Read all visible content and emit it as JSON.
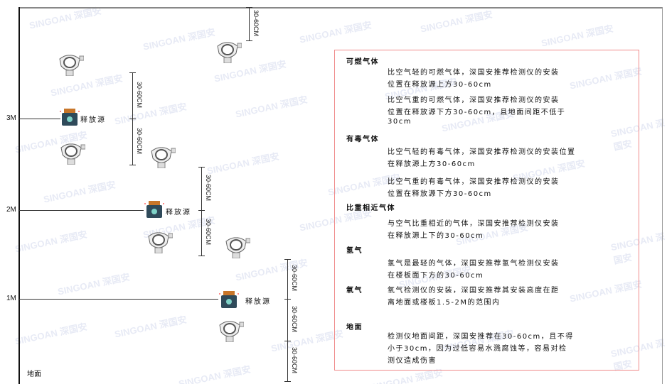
{
  "levels": [
    "3M",
    "2M",
    "1M"
  ],
  "ground_label": "地面",
  "release_source_label": "释放源",
  "dimension_label": "30-60CM",
  "watermark": "SINGOAN 深国安",
  "colors": {
    "panel_border": "#f08a8a",
    "source_body": "#2f4a5a",
    "source_cap": "#c8762a"
  },
  "panel": {
    "sections": [
      {
        "title": "可燃气体",
        "paragraphs": [
          [
            "比空气轻的可燃气体，深国安推荐检测仪的安装",
            "位置在释放源上方30-60cm"
          ],
          [
            "比空气重的可燃气体，深国安推荐检测仪的安装",
            "位置在释放源下方30-60cm，且地面间距不低于",
            "30cm"
          ]
        ]
      },
      {
        "title": "有毒气体",
        "paragraphs": [
          [
            "比空气轻的有毒气体，深国安推荐检测仪的安装位置",
            "在释放源上方30-60cm"
          ],
          [
            "比空气重的有毒气体，深国安推荐检测仪的安装",
            "位置在释放源下方30-60cm"
          ]
        ]
      },
      {
        "title": "比重相近气体",
        "paragraphs": [
          [
            "与空气比重相近的气体，深国安推荐检测仪安装",
            "在释放源上下的30-60cm"
          ]
        ]
      },
      {
        "title": "氢气",
        "paragraphs": [
          [
            "氢气是最轻的气体，深国安推荐氢气检测仪安装",
            "在楼板面下方的30-60cm"
          ]
        ]
      },
      {
        "title": "氧气",
        "paragraphs": [
          [
            "氧气检测仪的安装，深国安推荐其安装高度在距",
            "离地面或楼板1.5-2M的范围内"
          ]
        ]
      },
      {
        "title": "地面",
        "paragraphs": [
          [
            "检测仪地面间距，深国安推荐在30-60cm，且不得",
            "小于30cm，因为过低容易水溅腐蚀等，容易对检",
            "测仪造成伤害"
          ]
        ]
      }
    ]
  }
}
